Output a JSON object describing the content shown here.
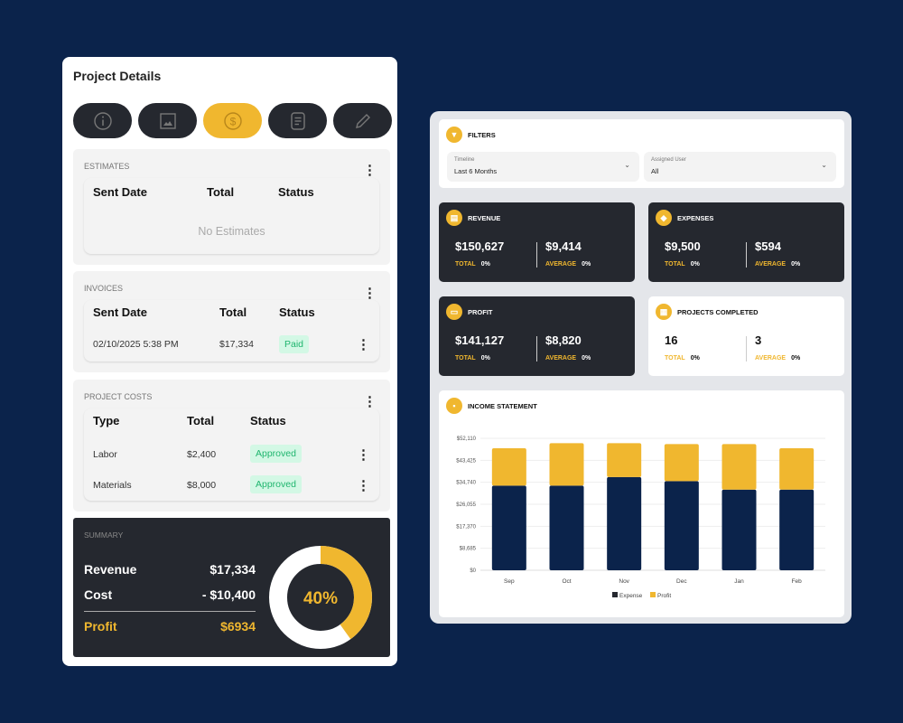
{
  "colors": {
    "accent": "#f0b72f",
    "dark": "#25282f",
    "navy": "#0b234b",
    "success": "#1fb56e"
  },
  "project": {
    "title": "Project Details",
    "tabs": [
      {
        "icon": "info-icon"
      },
      {
        "icon": "image-icon"
      },
      {
        "icon": "dollar-icon",
        "active": true
      },
      {
        "icon": "document-icon"
      },
      {
        "icon": "pencil-icon"
      }
    ],
    "estimates": {
      "label": "ESTIMATES",
      "headers": [
        "Sent Date",
        "Total",
        "Status"
      ],
      "empty": "No Estimates"
    },
    "invoices": {
      "label": "INVOICES",
      "headers": [
        "Sent Date",
        "Total",
        "Status"
      ],
      "rows": [
        {
          "date": "02/10/2025 5:38 PM",
          "total": "$17,334",
          "status": "Paid"
        }
      ]
    },
    "costs": {
      "label": "PROJECT COSTS",
      "headers": [
        "Type",
        "Total",
        "Status"
      ],
      "rows": [
        {
          "type": "Labor",
          "total": "$2,400",
          "status": "Approved"
        },
        {
          "type": "Materials",
          "total": "$8,000",
          "status": "Approved"
        }
      ]
    },
    "summary": {
      "label": "SUMMARY",
      "revenue_label": "Revenue",
      "revenue": "$17,334",
      "cost_label": "Cost",
      "cost": "- $10,400",
      "profit_label": "Profit",
      "profit": "$6934",
      "percent_label": "40%",
      "percent": 40
    }
  },
  "dashboard": {
    "filters": {
      "title": "FILTERS",
      "timeline_label": "Timeline",
      "timeline_value": "Last 6 Months",
      "user_label": "Assigned User",
      "user_value": "All"
    },
    "stats": [
      {
        "title": "REVENUE",
        "total": "$150,627",
        "average": "$9,414",
        "total_label": "TOTAL",
        "average_label": "AVERAGE",
        "total_pct": "0%",
        "average_pct": "0%"
      },
      {
        "title": "EXPENSES",
        "total": "$9,500",
        "average": "$594",
        "total_label": "TOTAL",
        "average_label": "AVERAGE",
        "total_pct": "0%",
        "average_pct": "0%"
      },
      {
        "title": "PROFIT",
        "total": "$141,127",
        "average": "$8,820",
        "total_label": "TOTAL",
        "average_label": "AVERAGE",
        "total_pct": "0%",
        "average_pct": "0%"
      },
      {
        "title": "PROJECTS COMPLETED",
        "total": "16",
        "average": "3",
        "total_label": "TOTAL",
        "average_label": "AVERAGE",
        "total_pct": "0%",
        "average_pct": "0%"
      }
    ],
    "income_title": "INCOME STATEMENT"
  },
  "chart_data": {
    "type": "bar",
    "stacked": true,
    "title": "INCOME STATEMENT",
    "categories": [
      "Sep",
      "Oct",
      "Nov",
      "Dec",
      "Jan",
      "Feb"
    ],
    "series": [
      {
        "name": "Expense",
        "color": "#0b234b",
        "values": [
          33400,
          33400,
          36800,
          35200,
          31850,
          31850
        ]
      },
      {
        "name": "Profit",
        "color": "#f0b72f",
        "values": [
          14800,
          16800,
          13400,
          14650,
          18000,
          16350
        ]
      }
    ],
    "yticks": [
      "$0",
      "$8,685",
      "$17,370",
      "$26,055",
      "$34,740",
      "$43,425",
      "$52,110"
    ],
    "ylim": [
      0,
      52110
    ],
    "grid": true,
    "legend": "bottom"
  }
}
